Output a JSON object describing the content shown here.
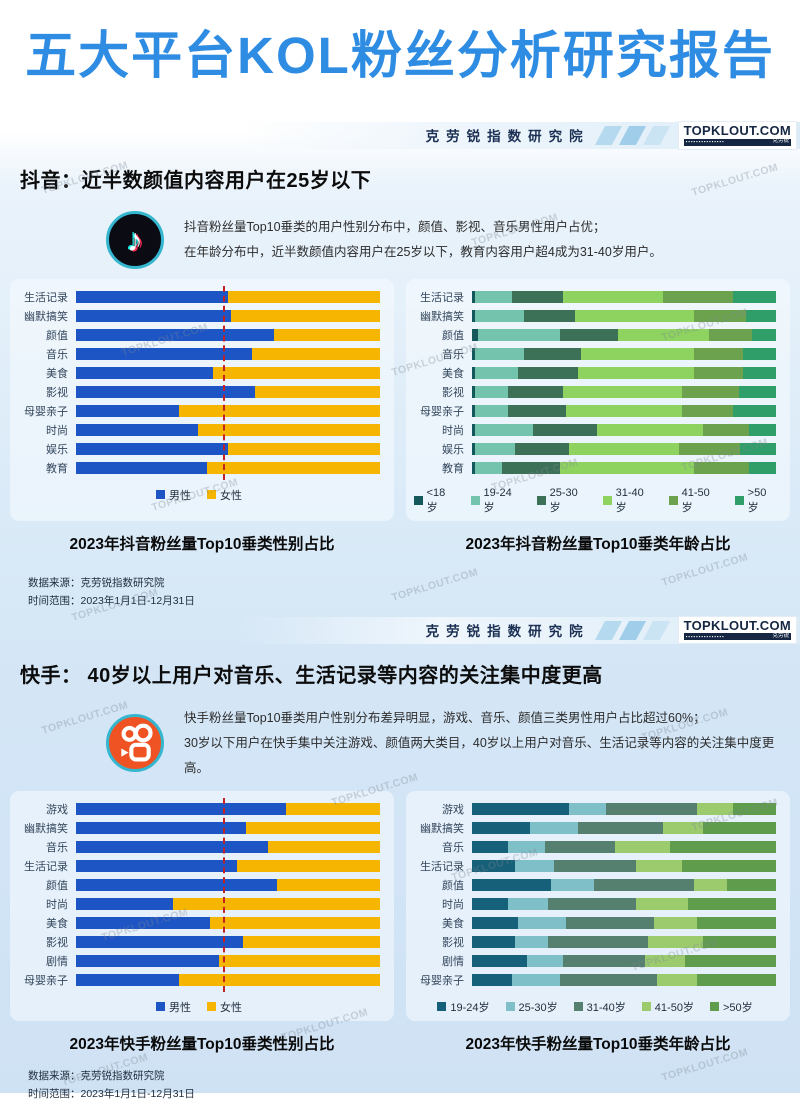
{
  "page": {
    "title": "五大平台KOL粉丝分析研究报告",
    "title_color": "#2f8ce3"
  },
  "header": {
    "institute": "克劳锐指数研究院",
    "logo_text": "TOPKLOUT.COM",
    "logo_sub": "克劳锐",
    "navy": "#152742"
  },
  "watermark": {
    "text": "TOPKLOUT.COM"
  },
  "sections": [
    {
      "platform": "douyin",
      "title": "抖音：近半数颜值内容用户在25岁以下",
      "desc_line1": "抖音粉丝量Top10垂类的用户性别分布中，颜值、影视、音乐男性用户占优；",
      "desc_line2": "在年龄分布中，近半数颜值内容用户在25岁以下，教育内容用户超4成为31-40岁用户。",
      "gender_caption": "2023年抖音粉丝量Top10垂类性别占比",
      "age_caption": "2023年抖音粉丝量Top10垂类年龄占比",
      "source_line1": "数据来源：克劳锐指数研究院",
      "source_line2": "时间范围：2023年1月1日-12月31日"
    },
    {
      "platform": "kuaishou",
      "title": "快手： 40岁以上用户对音乐、生活记录等内容的关注集中度更高",
      "desc_line1": "快手粉丝量Top10垂类用户性别分布差异明显，游戏、音乐、颜值三类男性用户占比超过60%；",
      "desc_line2": "30岁以下用户在快手集中关注游戏、颜值两大类目，40岁以上用户对音乐、生活记录等内容的关注集中度更高。",
      "gender_caption": "2023年快手粉丝量Top10垂类性别占比",
      "age_caption": "2023年快手粉丝量Top10垂类年龄占比",
      "source_line1": "数据来源：克劳锐指数研究院",
      "source_line2": "时间范围：2023年1月1日-12月31日"
    }
  ],
  "chart_data": [
    {
      "type": "bar",
      "subtype": "stacked-horizontal-percent",
      "title": "2023年抖音粉丝量Top10垂类性别占比",
      "categories": [
        "生活记录",
        "幽默搞笑",
        "颜值",
        "音乐",
        "美食",
        "影视",
        "母婴亲子",
        "时尚",
        "娱乐",
        "教育"
      ],
      "series": [
        {
          "name": "男性",
          "color": "#1d55c4",
          "values": [
            50,
            51,
            65,
            58,
            45,
            59,
            34,
            40,
            50,
            43
          ]
        },
        {
          "name": "女性",
          "color": "#f6b500",
          "values": [
            50,
            49,
            35,
            42,
            55,
            41,
            66,
            60,
            50,
            57
          ]
        }
      ],
      "xlim": [
        0,
        100
      ],
      "reference_line_pct": 47,
      "reference_line_color": "#c42222",
      "legend_position": "bottom"
    },
    {
      "type": "bar",
      "subtype": "stacked-horizontal-percent",
      "title": "2023年抖音粉丝量Top10垂类年龄占比",
      "categories": [
        "生活记录",
        "幽默搞笑",
        "颜值",
        "音乐",
        "美食",
        "影视",
        "母婴亲子",
        "时尚",
        "娱乐",
        "教育"
      ],
      "series": [
        {
          "name": "<18岁",
          "color": "#14585c",
          "values": [
            1,
            1,
            2,
            1,
            1,
            1,
            1,
            1,
            1,
            1
          ]
        },
        {
          "name": "19-24岁",
          "color": "#74c3ad",
          "values": [
            12,
            16,
            27,
            16,
            14,
            11,
            11,
            19,
            13,
            9
          ]
        },
        {
          "name": "25-30岁",
          "color": "#3c7157",
          "values": [
            17,
            17,
            19,
            19,
            20,
            18,
            19,
            21,
            18,
            19
          ]
        },
        {
          "name": "31-40岁",
          "color": "#8ed35f",
          "values": [
            33,
            39,
            30,
            37,
            38,
            39,
            38,
            35,
            36,
            44
          ]
        },
        {
          "name": "41-50岁",
          "color": "#6ca24d",
          "values": [
            23,
            17,
            14,
            16,
            16,
            19,
            17,
            15,
            20,
            18
          ]
        },
        {
          "name": ">50岁",
          "color": "#2f9e68",
          "values": [
            14,
            10,
            8,
            11,
            11,
            12,
            14,
            9,
            12,
            9
          ]
        }
      ],
      "xlim": [
        0,
        100
      ],
      "legend_position": "bottom"
    },
    {
      "type": "bar",
      "subtype": "stacked-horizontal-percent",
      "title": "2023年快手粉丝量Top10垂类性别占比",
      "categories": [
        "游戏",
        "幽默搞笑",
        "音乐",
        "生活记录",
        "颜值",
        "时尚",
        "美食",
        "影视",
        "剧情",
        "母婴亲子"
      ],
      "series": [
        {
          "name": "男性",
          "color": "#1d55c4",
          "values": [
            69,
            56,
            63,
            53,
            66,
            32,
            44,
            55,
            47,
            34
          ]
        },
        {
          "name": "女性",
          "color": "#f6b500",
          "values": [
            31,
            44,
            37,
            47,
            34,
            68,
            56,
            45,
            53,
            66
          ]
        }
      ],
      "xlim": [
        0,
        100
      ],
      "reference_line_pct": 47,
      "reference_line_color": "#c42222",
      "legend_position": "bottom"
    },
    {
      "type": "bar",
      "subtype": "stacked-horizontal-percent",
      "title": "2023年快手粉丝量Top10垂类年龄占比",
      "categories": [
        "游戏",
        "幽默搞笑",
        "音乐",
        "生活记录",
        "颜值",
        "时尚",
        "美食",
        "影视",
        "剧情",
        "母婴亲子"
      ],
      "series": [
        {
          "name": "19-24岁",
          "color": "#166079",
          "values": [
            32,
            19,
            12,
            14,
            26,
            12,
            15,
            14,
            18,
            13
          ]
        },
        {
          "name": "25-30岁",
          "color": "#7fc0c8",
          "values": [
            12,
            16,
            12,
            13,
            14,
            13,
            16,
            11,
            12,
            16
          ]
        },
        {
          "name": "31-40岁",
          "color": "#55806f",
          "values": [
            30,
            28,
            23,
            27,
            33,
            29,
            29,
            33,
            27,
            32
          ]
        },
        {
          "name": "41-50岁",
          "color": "#9ccb6e",
          "values": [
            12,
            13,
            18,
            15,
            11,
            17,
            14,
            18,
            13,
            13
          ]
        },
        {
          "name": ">50岁",
          "color": "#5f9c4b",
          "values": [
            14,
            24,
            35,
            31,
            16,
            29,
            26,
            24,
            30,
            26
          ]
        }
      ],
      "xlim": [
        0,
        100
      ],
      "legend_position": "bottom"
    }
  ]
}
